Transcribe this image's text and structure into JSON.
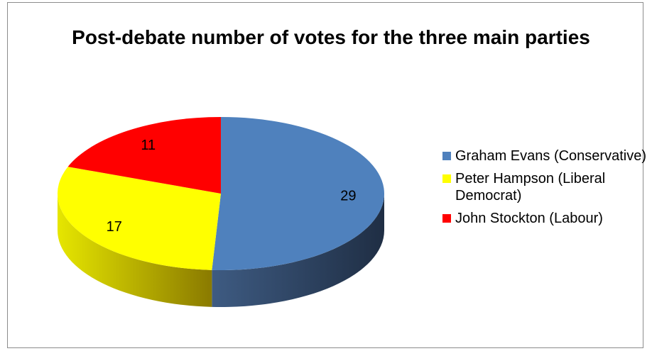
{
  "chart_data": {
    "type": "pie",
    "title": "Post-debate number of votes for the three main parties",
    "categories": [
      "Graham Evans (Conservative)",
      "Peter Hampson (Liberal Democrat)",
      "John Stockton (Labour)"
    ],
    "values": [
      29,
      17,
      11
    ],
    "colors": [
      "#4f81bd",
      "#ffff00",
      "#ff0000"
    ],
    "data_labels": [
      "29",
      "17",
      "11"
    ],
    "legend_position": "right",
    "style": "3d"
  }
}
